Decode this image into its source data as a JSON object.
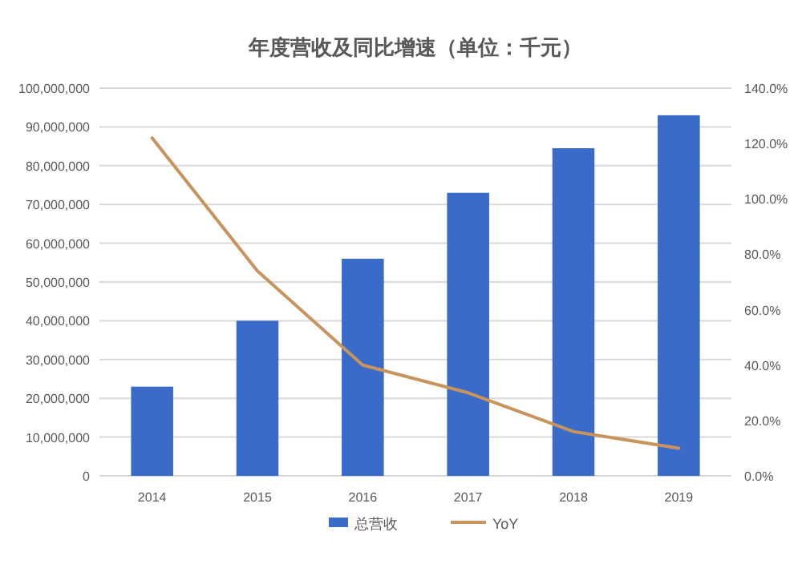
{
  "chart_data": {
    "type": "bar",
    "title": "年度营收及同比增速（单位：千元）",
    "categories": [
      "2014",
      "2015",
      "2016",
      "2017",
      "2018",
      "2019"
    ],
    "series": [
      {
        "name": "总营收",
        "color": "#3a6bc9",
        "values": [
          23000000,
          40000000,
          56000000,
          73000000,
          84500000,
          93000000
        ]
      },
      {
        "name": "YoY",
        "type": "line",
        "axis": "y2",
        "color": "#c8945e",
        "values": [
          122,
          74,
          40,
          30,
          16,
          10
        ]
      }
    ],
    "ylim": [
      0,
      100000000
    ],
    "yticks": [
      {
        "value": 0,
        "label": "0"
      },
      {
        "value": 10000000,
        "label": "10,000,000"
      },
      {
        "value": 20000000,
        "label": "20,000,000"
      },
      {
        "value": 30000000,
        "label": "30,000,000"
      },
      {
        "value": 40000000,
        "label": "40,000,000"
      },
      {
        "value": 50000000,
        "label": "50,000,000"
      },
      {
        "value": 60000000,
        "label": "60,000,000"
      },
      {
        "value": 70000000,
        "label": "70,000,000"
      },
      {
        "value": 80000000,
        "label": "80,000,000"
      },
      {
        "value": 90000000,
        "label": "90,000,000"
      },
      {
        "value": 100000000,
        "label": "100,000,000"
      }
    ],
    "y2lim": [
      0,
      140
    ],
    "y2ticks": [
      {
        "value": 0,
        "label": "0.0%"
      },
      {
        "value": 20,
        "label": "20.0%"
      },
      {
        "value": 40,
        "label": "40.0%"
      },
      {
        "value": 60,
        "label": "60.0%"
      },
      {
        "value": 80,
        "label": "80.0%"
      },
      {
        "value": 100,
        "label": "100.0%"
      },
      {
        "value": 120,
        "label": "120.0%"
      },
      {
        "value": 140,
        "label": "140.0%"
      }
    ],
    "grid": "y",
    "legend": "bottom",
    "marker": "none"
  }
}
